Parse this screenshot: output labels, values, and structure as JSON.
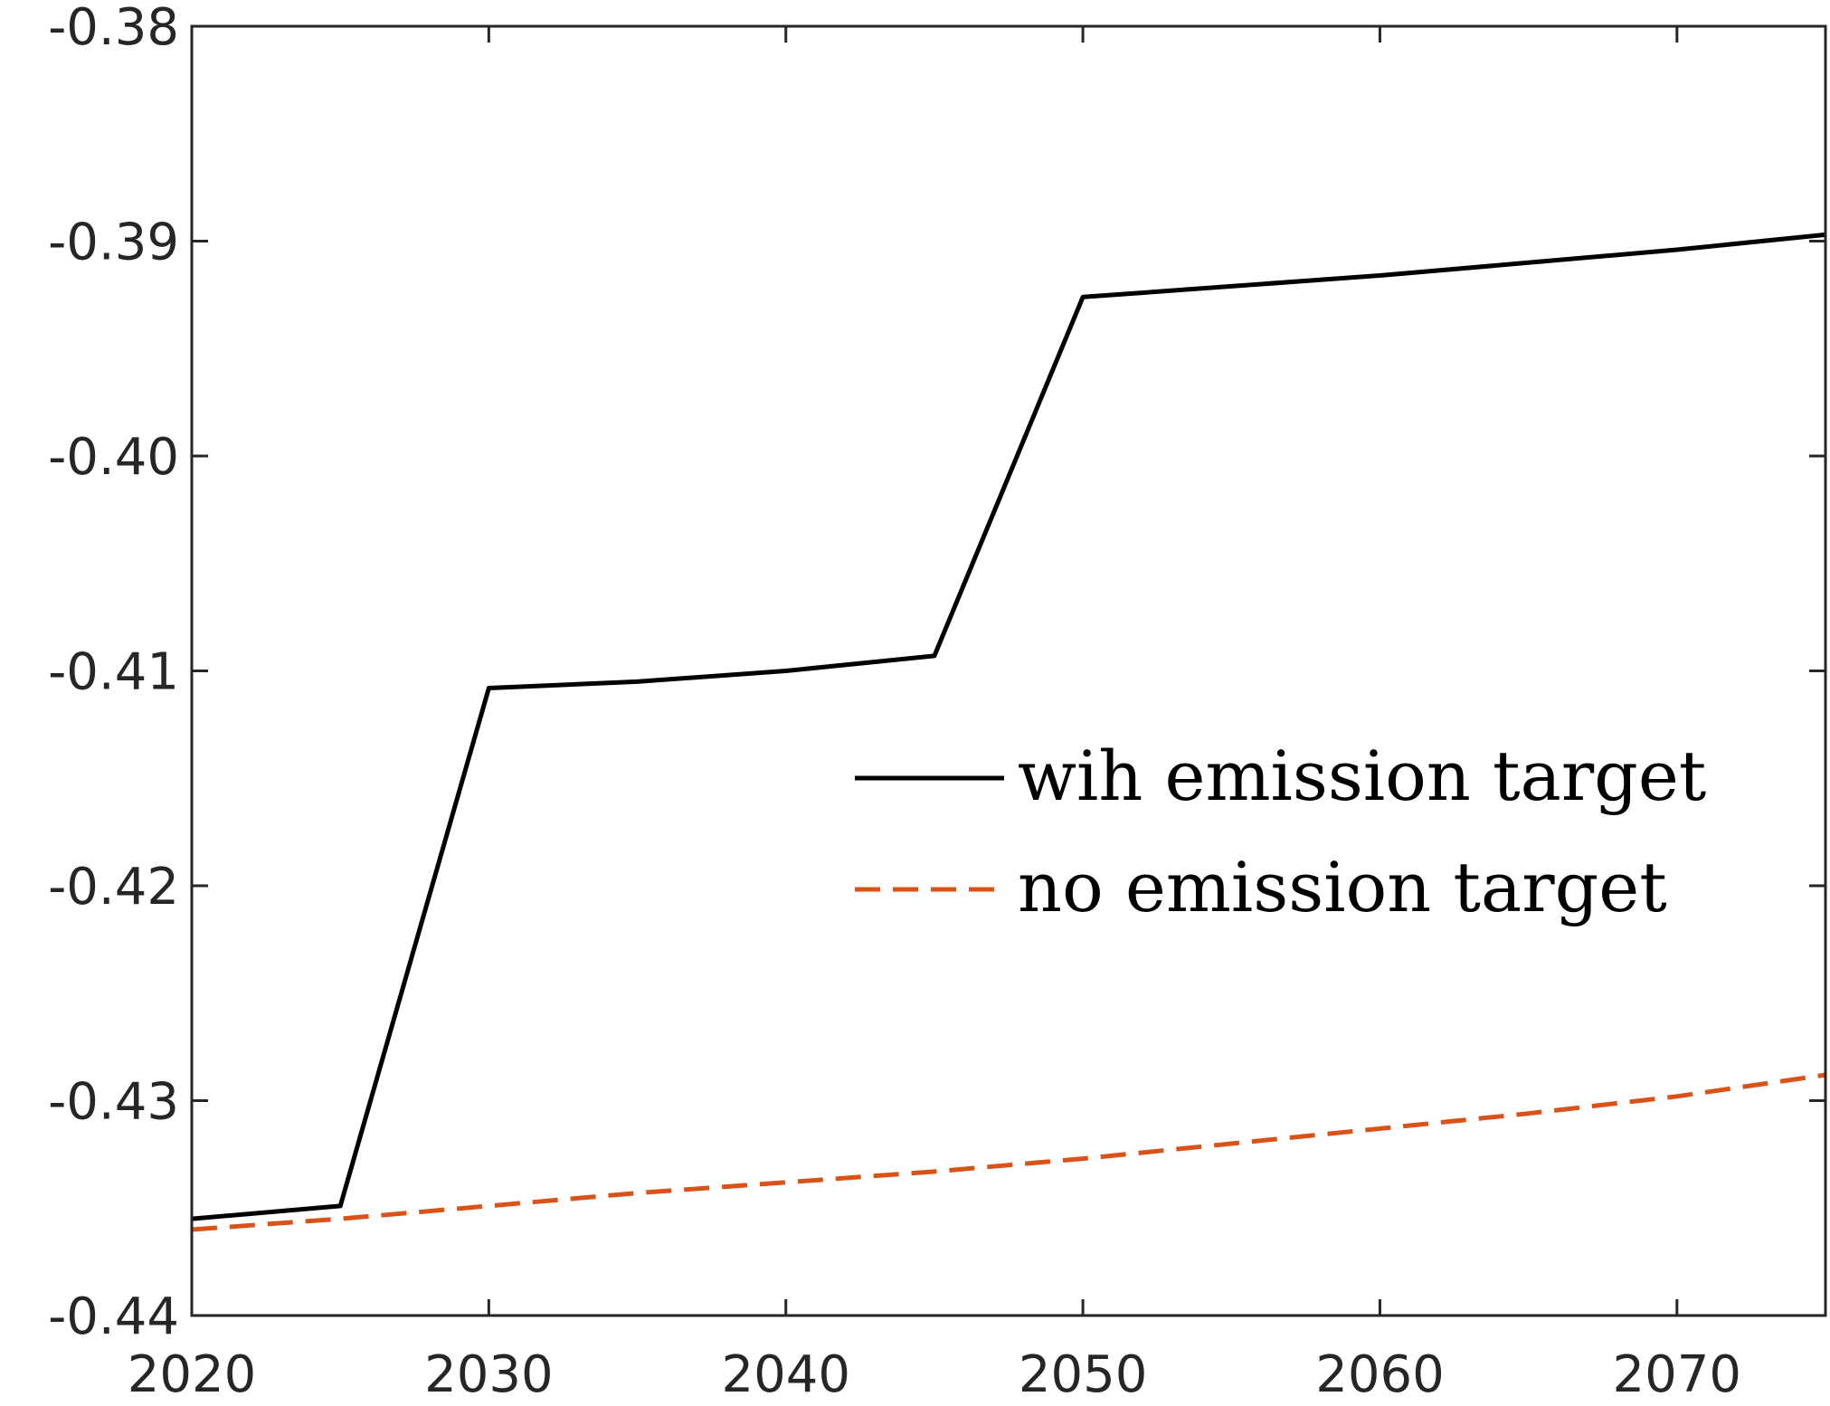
{
  "chart_data": {
    "type": "line",
    "title": "",
    "xlabel": "",
    "ylabel": "",
    "xlim": [
      2020,
      2075
    ],
    "ylim": [
      -0.44,
      -0.38
    ],
    "xticks": [
      2020,
      2030,
      2040,
      2050,
      2060,
      2070
    ],
    "xtick_labels": [
      "2020",
      "2030",
      "2040",
      "2050",
      "2060",
      "2070"
    ],
    "yticks": [
      -0.44,
      -0.43,
      -0.42,
      -0.41,
      -0.4,
      -0.39,
      -0.38
    ],
    "ytick_labels": [
      "-0.44",
      "-0.43",
      "-0.42",
      "-0.41",
      "-0.40",
      "-0.39",
      "-0.38"
    ],
    "grid": false,
    "legend_position": "right",
    "series": [
      {
        "name": "wih emission target",
        "color": "#000000",
        "line_style": "solid",
        "x": [
          2020,
          2025,
          2030,
          2035,
          2040,
          2045,
          2050,
          2055,
          2060,
          2065,
          2070,
          2075
        ],
        "y": [
          -0.4355,
          -0.4349,
          -0.4108,
          -0.4105,
          -0.41,
          -0.4093,
          -0.3926,
          -0.3921,
          -0.3916,
          -0.391,
          -0.3904,
          -0.3897
        ]
      },
      {
        "name": "no emission target",
        "color": "#D95319",
        "line_style": "dashed",
        "x": [
          2020,
          2025,
          2030,
          2035,
          2040,
          2045,
          2050,
          2055,
          2060,
          2065,
          2070,
          2075
        ],
        "y": [
          -0.436,
          -0.4355,
          -0.4349,
          -0.4343,
          -0.4338,
          -0.4333,
          -0.4327,
          -0.432,
          -0.4313,
          -0.4306,
          -0.4298,
          -0.4288
        ]
      }
    ]
  }
}
